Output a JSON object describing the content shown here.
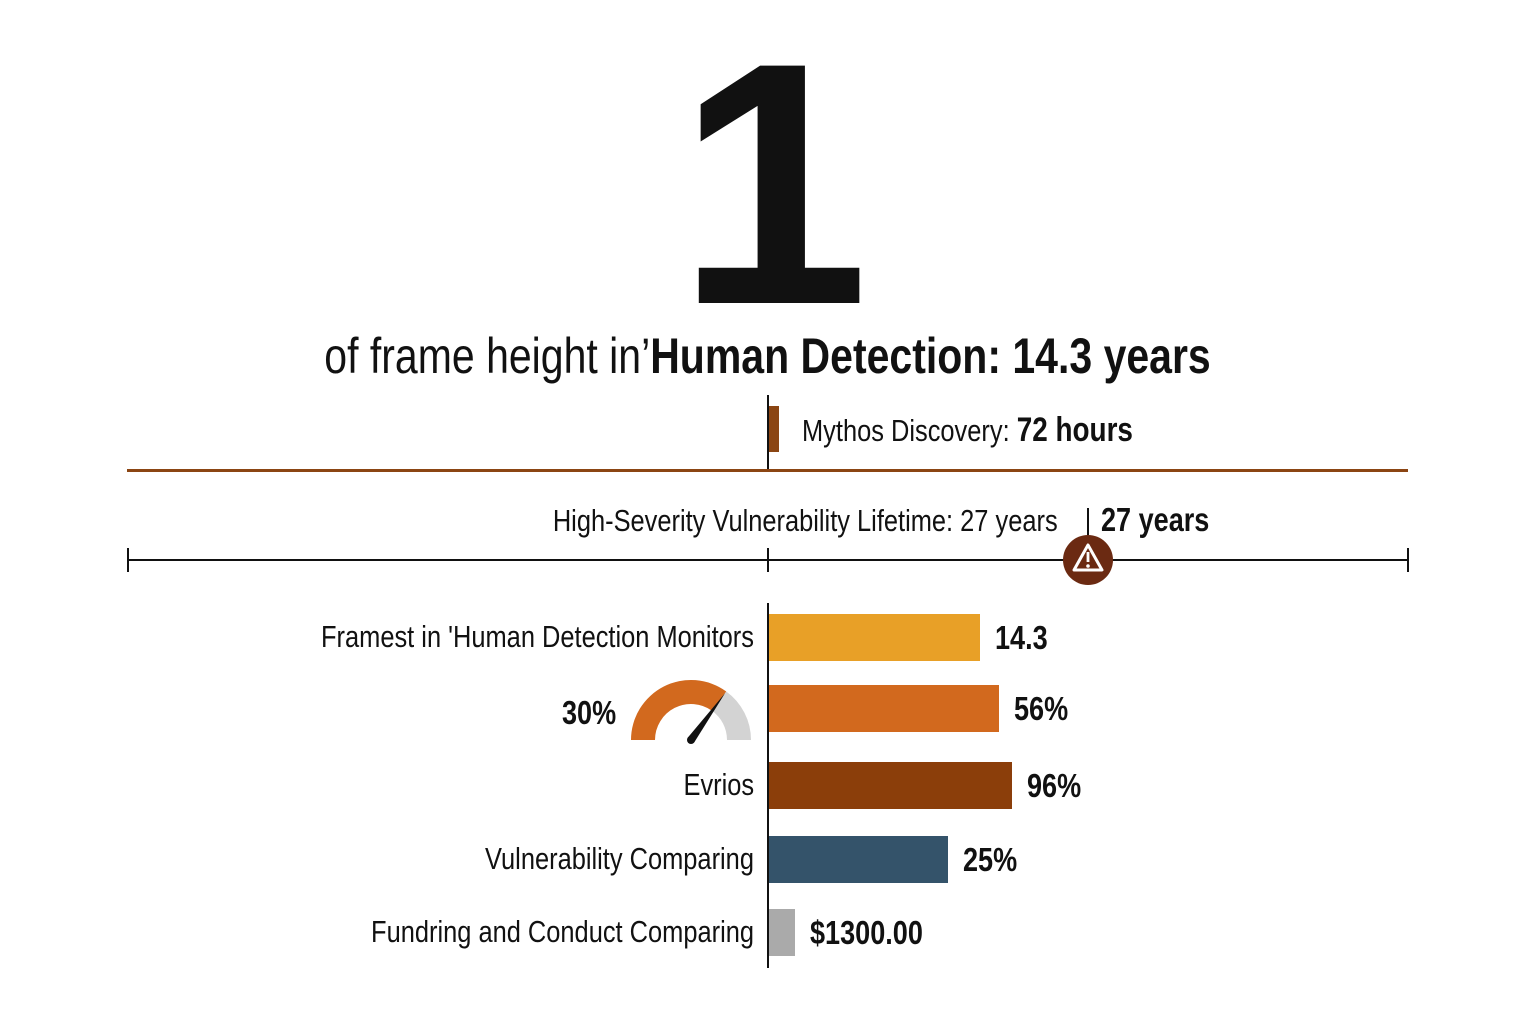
{
  "hero": {
    "number": "1"
  },
  "subtitle": {
    "light": "of frame height in’",
    "bold": "Human Detection: 14.3 years"
  },
  "timeline": {
    "mythos_label": "Mythos Discovery:",
    "mythos_value": "72 hours",
    "lifetime_label": "High-Severity Vulnerability Lifetime: 27 years",
    "lifetime_value": "27 years",
    "warning_icon": "warning-triangle-icon",
    "colors": {
      "mythos": "#8B4513",
      "warning": "#6B2A12",
      "axis": "#111111"
    }
  },
  "gauge": {
    "label": "30%",
    "level": 0.3,
    "colors": {
      "fill": "#D2691E",
      "track": "#D3D3D3",
      "needle": "#111111"
    }
  },
  "chart_data": {
    "type": "bar",
    "orientation": "horizontal",
    "categories": [
      "Framest in 'Human Detection Monitors",
      "",
      "Evrios",
      "Vulnerability Comparing",
      "Fundring and Conduct Comparing"
    ],
    "value_labels": [
      "14.3",
      "56%",
      "96%",
      "25%",
      "$1300.00"
    ],
    "relative_length": [
      0.33,
      0.36,
      0.38,
      0.28,
      0.04
    ],
    "colors": [
      "#E8A027",
      "#D2691E",
      "#8B3E0A",
      "#34536A",
      "#AAAAAA"
    ],
    "grid": false
  }
}
